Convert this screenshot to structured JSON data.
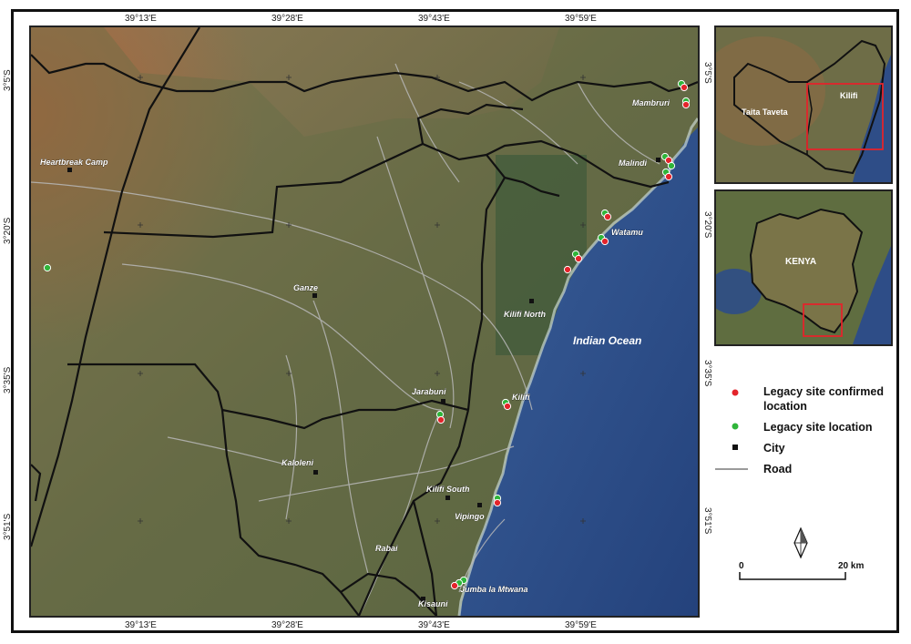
{
  "coords": {
    "top": [
      "39°13'E",
      "39°28'E",
      "39°43'E",
      "39°59'E"
    ],
    "bottom": [
      "39°13'E",
      "39°28'E",
      "39°43'E",
      "39°59'E"
    ],
    "left": [
      "3°5'S",
      "3°20'S",
      "3°35'S",
      "3°51'S"
    ],
    "right": [
      "3°5'S",
      "3°20'S",
      "3°35'S",
      "3°51'S"
    ]
  },
  "places": {
    "heartbreak_camp": "Heartbreak Camp",
    "ganze": "Ganze",
    "kilifi_north": "Kilifi North",
    "indian_ocean": "Indian Ocean",
    "jarabuni": "Jarabuni",
    "kilifi": "Kilifi",
    "kaloleni": "Kaloleni",
    "kilifi_south": "Kilifi South",
    "vipingo": "Vipingo",
    "rabai": "Rabai",
    "jumba": "Jumba la Mtwana",
    "kisauni": "Kisauni",
    "mambruri": "Mambruri",
    "malindi": "Malindi",
    "watamu": "Watamu"
  },
  "inset_top": {
    "taita": "Taita Taveta",
    "kilifi": "Kilifi"
  },
  "inset_bottom": {
    "kenya": "KENYA"
  },
  "legend": {
    "confirmed_line1": "Legacy site confirmed",
    "confirmed_line2": "location",
    "legacy": "Legacy site location",
    "city": "City",
    "road": "Road"
  },
  "scale": {
    "start": "0",
    "end": "20 km"
  },
  "colors": {
    "confirmed": "#e3242b",
    "legacy": "#2fb53a",
    "city": "#111111",
    "road": "#9a9a9a",
    "boundary": "#111111",
    "inset_box": "#e3242b",
    "ocean": "#2b4f8f"
  },
  "icons": {
    "north_arrow": "north-arrow-icon"
  }
}
